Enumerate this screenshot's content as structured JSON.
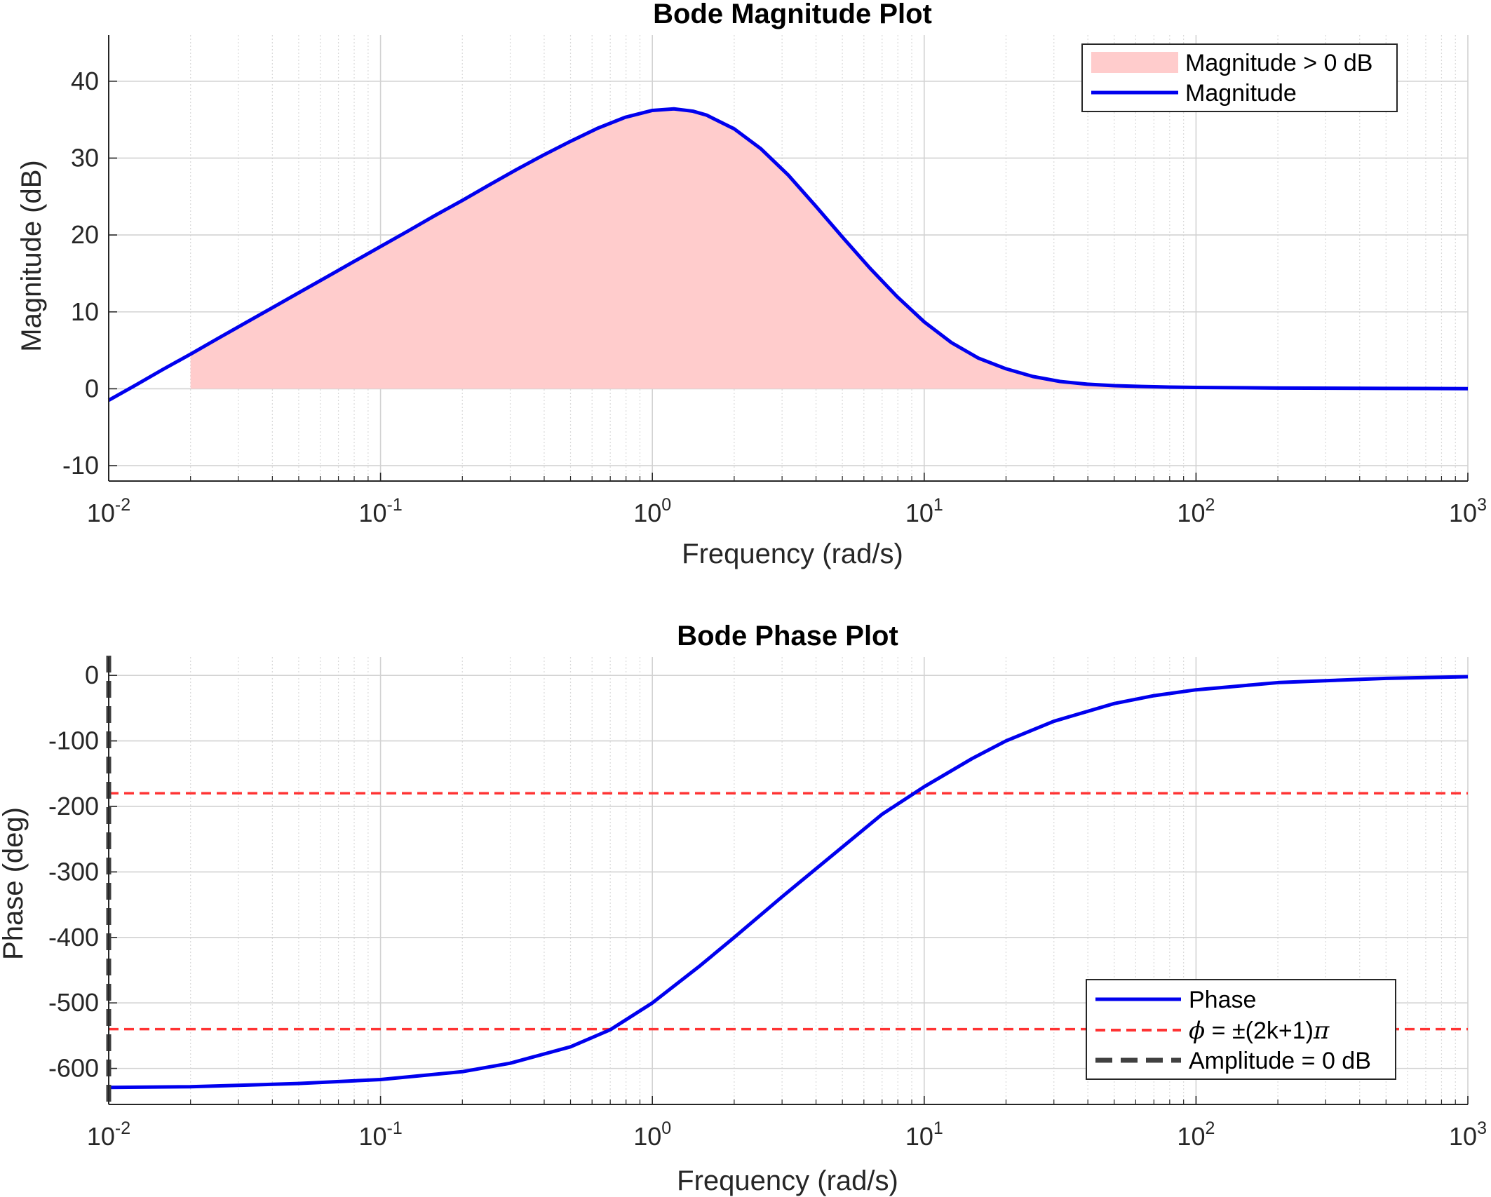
{
  "chart_data": [
    {
      "type": "line",
      "title": "Bode Magnitude Plot",
      "xlabel": "Frequency (rad/s)",
      "ylabel": "Magnitude (dB)",
      "xscale": "log",
      "xlim": [
        0.01,
        1000
      ],
      "ylim": [
        -12,
        46
      ],
      "xticks": [
        {
          "base": "10",
          "exp": "-2",
          "value": 0.01
        },
        {
          "base": "10",
          "exp": "-1",
          "value": 0.1
        },
        {
          "base": "10",
          "exp": "0",
          "value": 1
        },
        {
          "base": "10",
          "exp": "1",
          "value": 10
        },
        {
          "base": "10",
          "exp": "2",
          "value": 100
        },
        {
          "base": "10",
          "exp": "3",
          "value": 1000
        }
      ],
      "yticks": [
        -10,
        0,
        10,
        20,
        30,
        40
      ],
      "grid": true,
      "legend_position": "top-right",
      "legend": [
        "Magnitude > 0 dB",
        "Magnitude"
      ],
      "fill": {
        "name": "Magnitude > 0 dB",
        "color": "#ffcccc",
        "from_x": 0.02,
        "baseline": 0
      },
      "series": [
        {
          "name": "Magnitude",
          "color": "#0000ee",
          "x": [
            0.01,
            0.0126,
            0.0158,
            0.02,
            0.0251,
            0.0316,
            0.0398,
            0.0501,
            0.0631,
            0.0794,
            0.1,
            0.126,
            0.158,
            0.2,
            0.251,
            0.316,
            0.398,
            0.501,
            0.631,
            0.794,
            1.0,
            1.2,
            1.41,
            1.58,
            2.0,
            2.51,
            3.16,
            3.98,
            5.01,
            6.31,
            7.94,
            10,
            12.6,
            15.8,
            20,
            25.1,
            31.6,
            39.8,
            50.1,
            63.1,
            79.4,
            100,
            200,
            500,
            1000
          ],
          "values": [
            -1.5,
            0.5,
            2.5,
            4.5,
            6.5,
            8.5,
            10.5,
            12.5,
            14.5,
            16.5,
            18.5,
            20.5,
            22.5,
            24.5,
            26.5,
            28.5,
            30.4,
            32.2,
            33.9,
            35.3,
            36.2,
            36.4,
            36.1,
            35.6,
            33.8,
            31.2,
            27.8,
            23.8,
            19.7,
            15.7,
            12.0,
            8.7,
            6.0,
            4.0,
            2.6,
            1.6,
            0.95,
            0.6,
            0.4,
            0.3,
            0.22,
            0.18,
            0.1,
            0.05,
            0.02
          ]
        }
      ]
    },
    {
      "type": "line",
      "title": "Bode Phase Plot",
      "xlabel": "Frequency (rad/s)",
      "ylabel": "Phase (deg)",
      "xscale": "log",
      "xlim": [
        0.01,
        1000
      ],
      "ylim": [
        -655,
        28
      ],
      "xticks": [
        {
          "base": "10",
          "exp": "-2",
          "value": 0.01
        },
        {
          "base": "10",
          "exp": "-1",
          "value": 0.1
        },
        {
          "base": "10",
          "exp": "0",
          "value": 1
        },
        {
          "base": "10",
          "exp": "1",
          "value": 10
        },
        {
          "base": "10",
          "exp": "2",
          "value": 100
        },
        {
          "base": "10",
          "exp": "3",
          "value": 1000
        }
      ],
      "yticks": [
        -600,
        -500,
        -400,
        -300,
        -200,
        -100,
        0
      ],
      "grid": true,
      "legend_position": "bottom-right",
      "legend": [
        "Phase",
        "ϕ = ±(2k+1)π",
        "Amplitude = 0 dB"
      ],
      "hlines": {
        "name": "ϕ = ±(2k+1)π",
        "color": "#ff3333",
        "values": [
          -180,
          -540
        ]
      },
      "vline": {
        "name": "Amplitude = 0 dB",
        "color": "#404040",
        "x": 0.01
      },
      "series": [
        {
          "name": "Phase",
          "color": "#0000ee",
          "x": [
            0.01,
            0.02,
            0.05,
            0.1,
            0.2,
            0.3,
            0.5,
            0.7,
            1.0,
            1.5,
            2.0,
            3.0,
            5.0,
            7.0,
            10,
            15,
            20,
            30,
            50,
            70,
            100,
            200,
            500,
            1000
          ],
          "values": [
            -629,
            -628,
            -623,
            -617,
            -605,
            -592,
            -567,
            -541,
            -500,
            -443,
            -400,
            -338,
            -262,
            -212,
            -170,
            -127,
            -100,
            -70,
            -43,
            -31,
            -22,
            -11,
            -4.5,
            -2
          ]
        }
      ]
    }
  ]
}
